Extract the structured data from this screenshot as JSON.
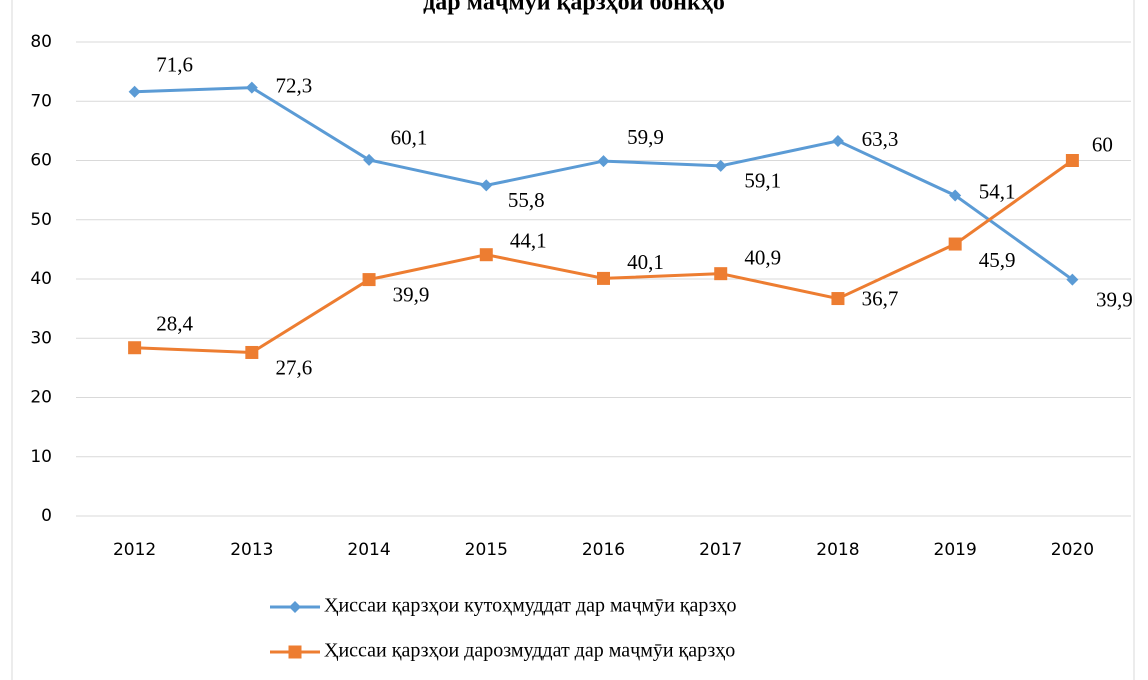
{
  "chart_data": {
    "type": "line",
    "title": "дар маҷмӯи қарзҳои бонкҳо",
    "categories": [
      "2012",
      "2013",
      "2014",
      "2015",
      "2016",
      "2017",
      "2018",
      "2019",
      "2020"
    ],
    "series": [
      {
        "name": "Ҳиссаи қарзҳои кутоҳмуддат дар маҷмӯи қарзҳо",
        "color": "#5b9bd5",
        "marker": "diamond",
        "values": [
          71.6,
          72.3,
          60.1,
          55.8,
          59.9,
          59.1,
          63.3,
          54.1,
          39.9
        ],
        "value_labels": [
          "71,6",
          "72,3",
          "60,1",
          "55,8",
          "59,9",
          "59,1",
          "63,3",
          "54,1",
          "39,9"
        ]
      },
      {
        "name": "Ҳиссаи қарзҳои дарозмуддат дар маҷмӯи қарзҳо",
        "color": "#ed7d31",
        "marker": "square",
        "values": [
          28.4,
          27.6,
          39.9,
          44.1,
          40.1,
          40.9,
          36.7,
          45.9,
          60
        ],
        "value_labels": [
          "28,4",
          "27,6",
          "39,9",
          "44,1",
          "40,1",
          "40,9",
          "36,7",
          "45,9",
          "60"
        ]
      }
    ],
    "ylim": [
      0,
      80
    ],
    "yticks": [
      0,
      10,
      20,
      30,
      40,
      50,
      60,
      70,
      80
    ],
    "grid": true,
    "legend": "bottom"
  }
}
